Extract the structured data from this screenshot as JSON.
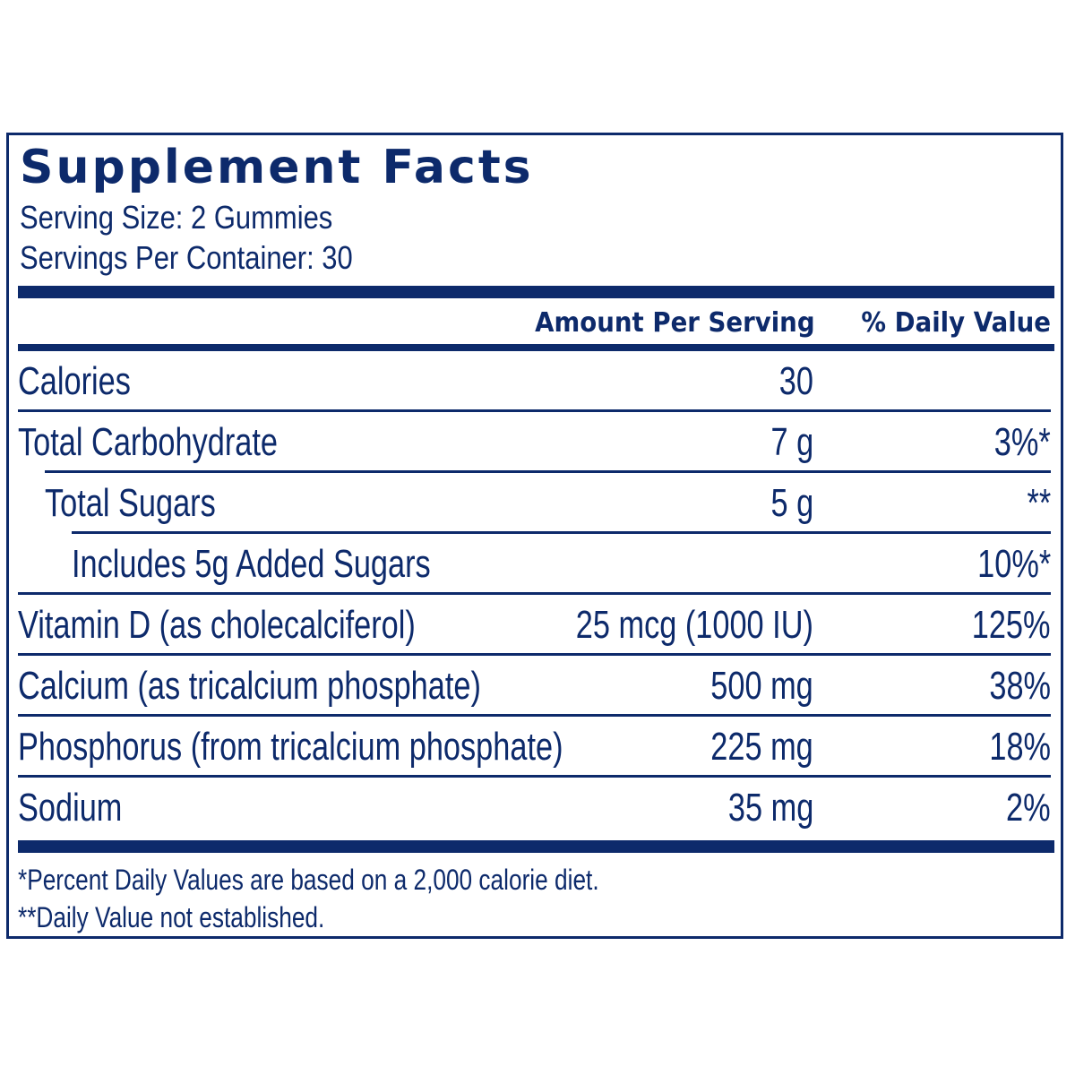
{
  "label": {
    "title": "Supplement Facts",
    "serving_size": "Serving Size: 2 Gummies",
    "servings_per_container": "Servings Per Container: 30",
    "header_amount": "Amount Per Serving",
    "header_daily_value": "% Daily Value",
    "rows": [
      {
        "name": "Calories",
        "amount": "30",
        "dv": "",
        "indent": 0
      },
      {
        "name": "Total Carbohydrate",
        "amount": "7 g",
        "dv": "3%*",
        "indent": 0
      },
      {
        "name": "Total Sugars",
        "amount": "5 g",
        "dv": "**",
        "indent": 1
      },
      {
        "name": "Includes 5g Added Sugars",
        "amount": "",
        "dv": "10%*",
        "indent": 2
      },
      {
        "name": "Vitamin D (as cholecalciferol)",
        "amount": "25 mcg (1000 IU)",
        "dv": "125%",
        "indent": 0
      },
      {
        "name": "Calcium (as tricalcium phosphate)",
        "amount": "500 mg",
        "dv": "38%",
        "indent": 0
      },
      {
        "name": "Phosphorus (from tricalcium phosphate)",
        "amount": "225 mg",
        "dv": "18%",
        "indent": 0
      },
      {
        "name": "Sodium",
        "amount": "35 mg",
        "dv": "2%",
        "indent": 0
      }
    ],
    "footnote_1": "*Percent Daily Values are based on a 2,000 calorie diet.",
    "footnote_2": "**Daily Value not established."
  },
  "colors": {
    "ink": "#0d2a6b",
    "background": "#ffffff"
  }
}
